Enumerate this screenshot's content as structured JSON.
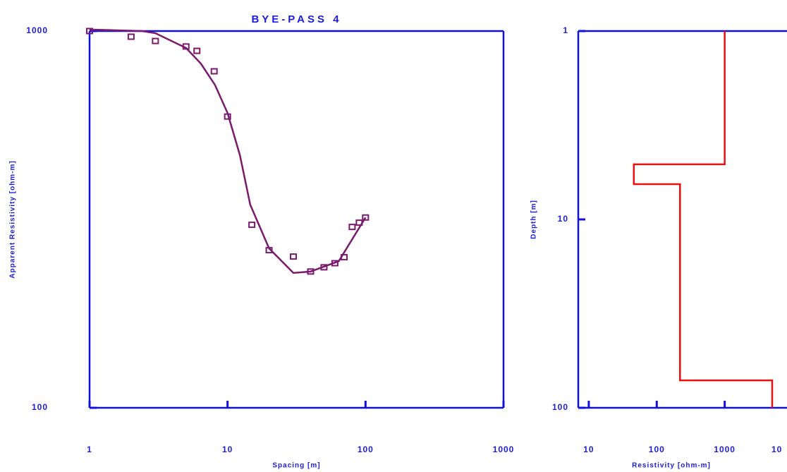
{
  "chart_data": [
    {
      "type": "line",
      "title": "BYE-PASS 4",
      "x_label": "Spacing [m]",
      "y_label": "Apparent Resistivity [ohm-m]",
      "xscale": "log",
      "yscale": "log",
      "xlim": [
        1,
        1000
      ],
      "ylim": [
        100,
        1000
      ],
      "xticks": [
        1,
        10,
        100,
        1000
      ],
      "yticks": [
        100,
        1000
      ],
      "axis_color": "#1010e0",
      "series": [
        {
          "style": "markers",
          "color": "#7a1a6e",
          "x": [
            1,
            2,
            3,
            5,
            6,
            8,
            10,
            15,
            20,
            30,
            40,
            50,
            60,
            70,
            80,
            90,
            100
          ],
          "values": [
            1000,
            966,
            941,
            910,
            886,
            782,
            593,
            306,
            262,
            252,
            230,
            236,
            242,
            251,
            302,
            310,
            320
          ]
        },
        {
          "style": "line",
          "color": "#7a1a6e",
          "x": [
            1,
            2.4,
            3,
            5,
            6.4,
            8.1,
            10,
            12.3,
            14.6,
            20,
            30,
            40,
            64,
            100
          ],
          "values": [
            1009,
            1000,
            987,
            902,
            820,
            720,
            606,
            468,
            346,
            265,
            228,
            230,
            245,
            320
          ]
        }
      ]
    },
    {
      "type": "line",
      "x_label": "Resistivity [ohm-m]",
      "y_label": "Depth [m]",
      "xscale": "log",
      "yscale": "log",
      "y_inverted": true,
      "xlim": [
        7,
        10000
      ],
      "ylim": [
        1,
        100
      ],
      "xticks": [
        10,
        100,
        1000,
        {
          "value": 10000,
          "label": "10"
        }
      ],
      "yticks": [
        1,
        10,
        100
      ],
      "axis_color": "#1010e0",
      "series": [
        {
          "style": "line",
          "color": "#e81010",
          "x": [
            1000,
            1000,
            46,
            46,
            220,
            220,
            5000,
            5000
          ],
          "values": [
            1,
            5.1,
            5.1,
            6.5,
            6.5,
            71.5,
            71.5,
            100
          ]
        }
      ]
    }
  ]
}
